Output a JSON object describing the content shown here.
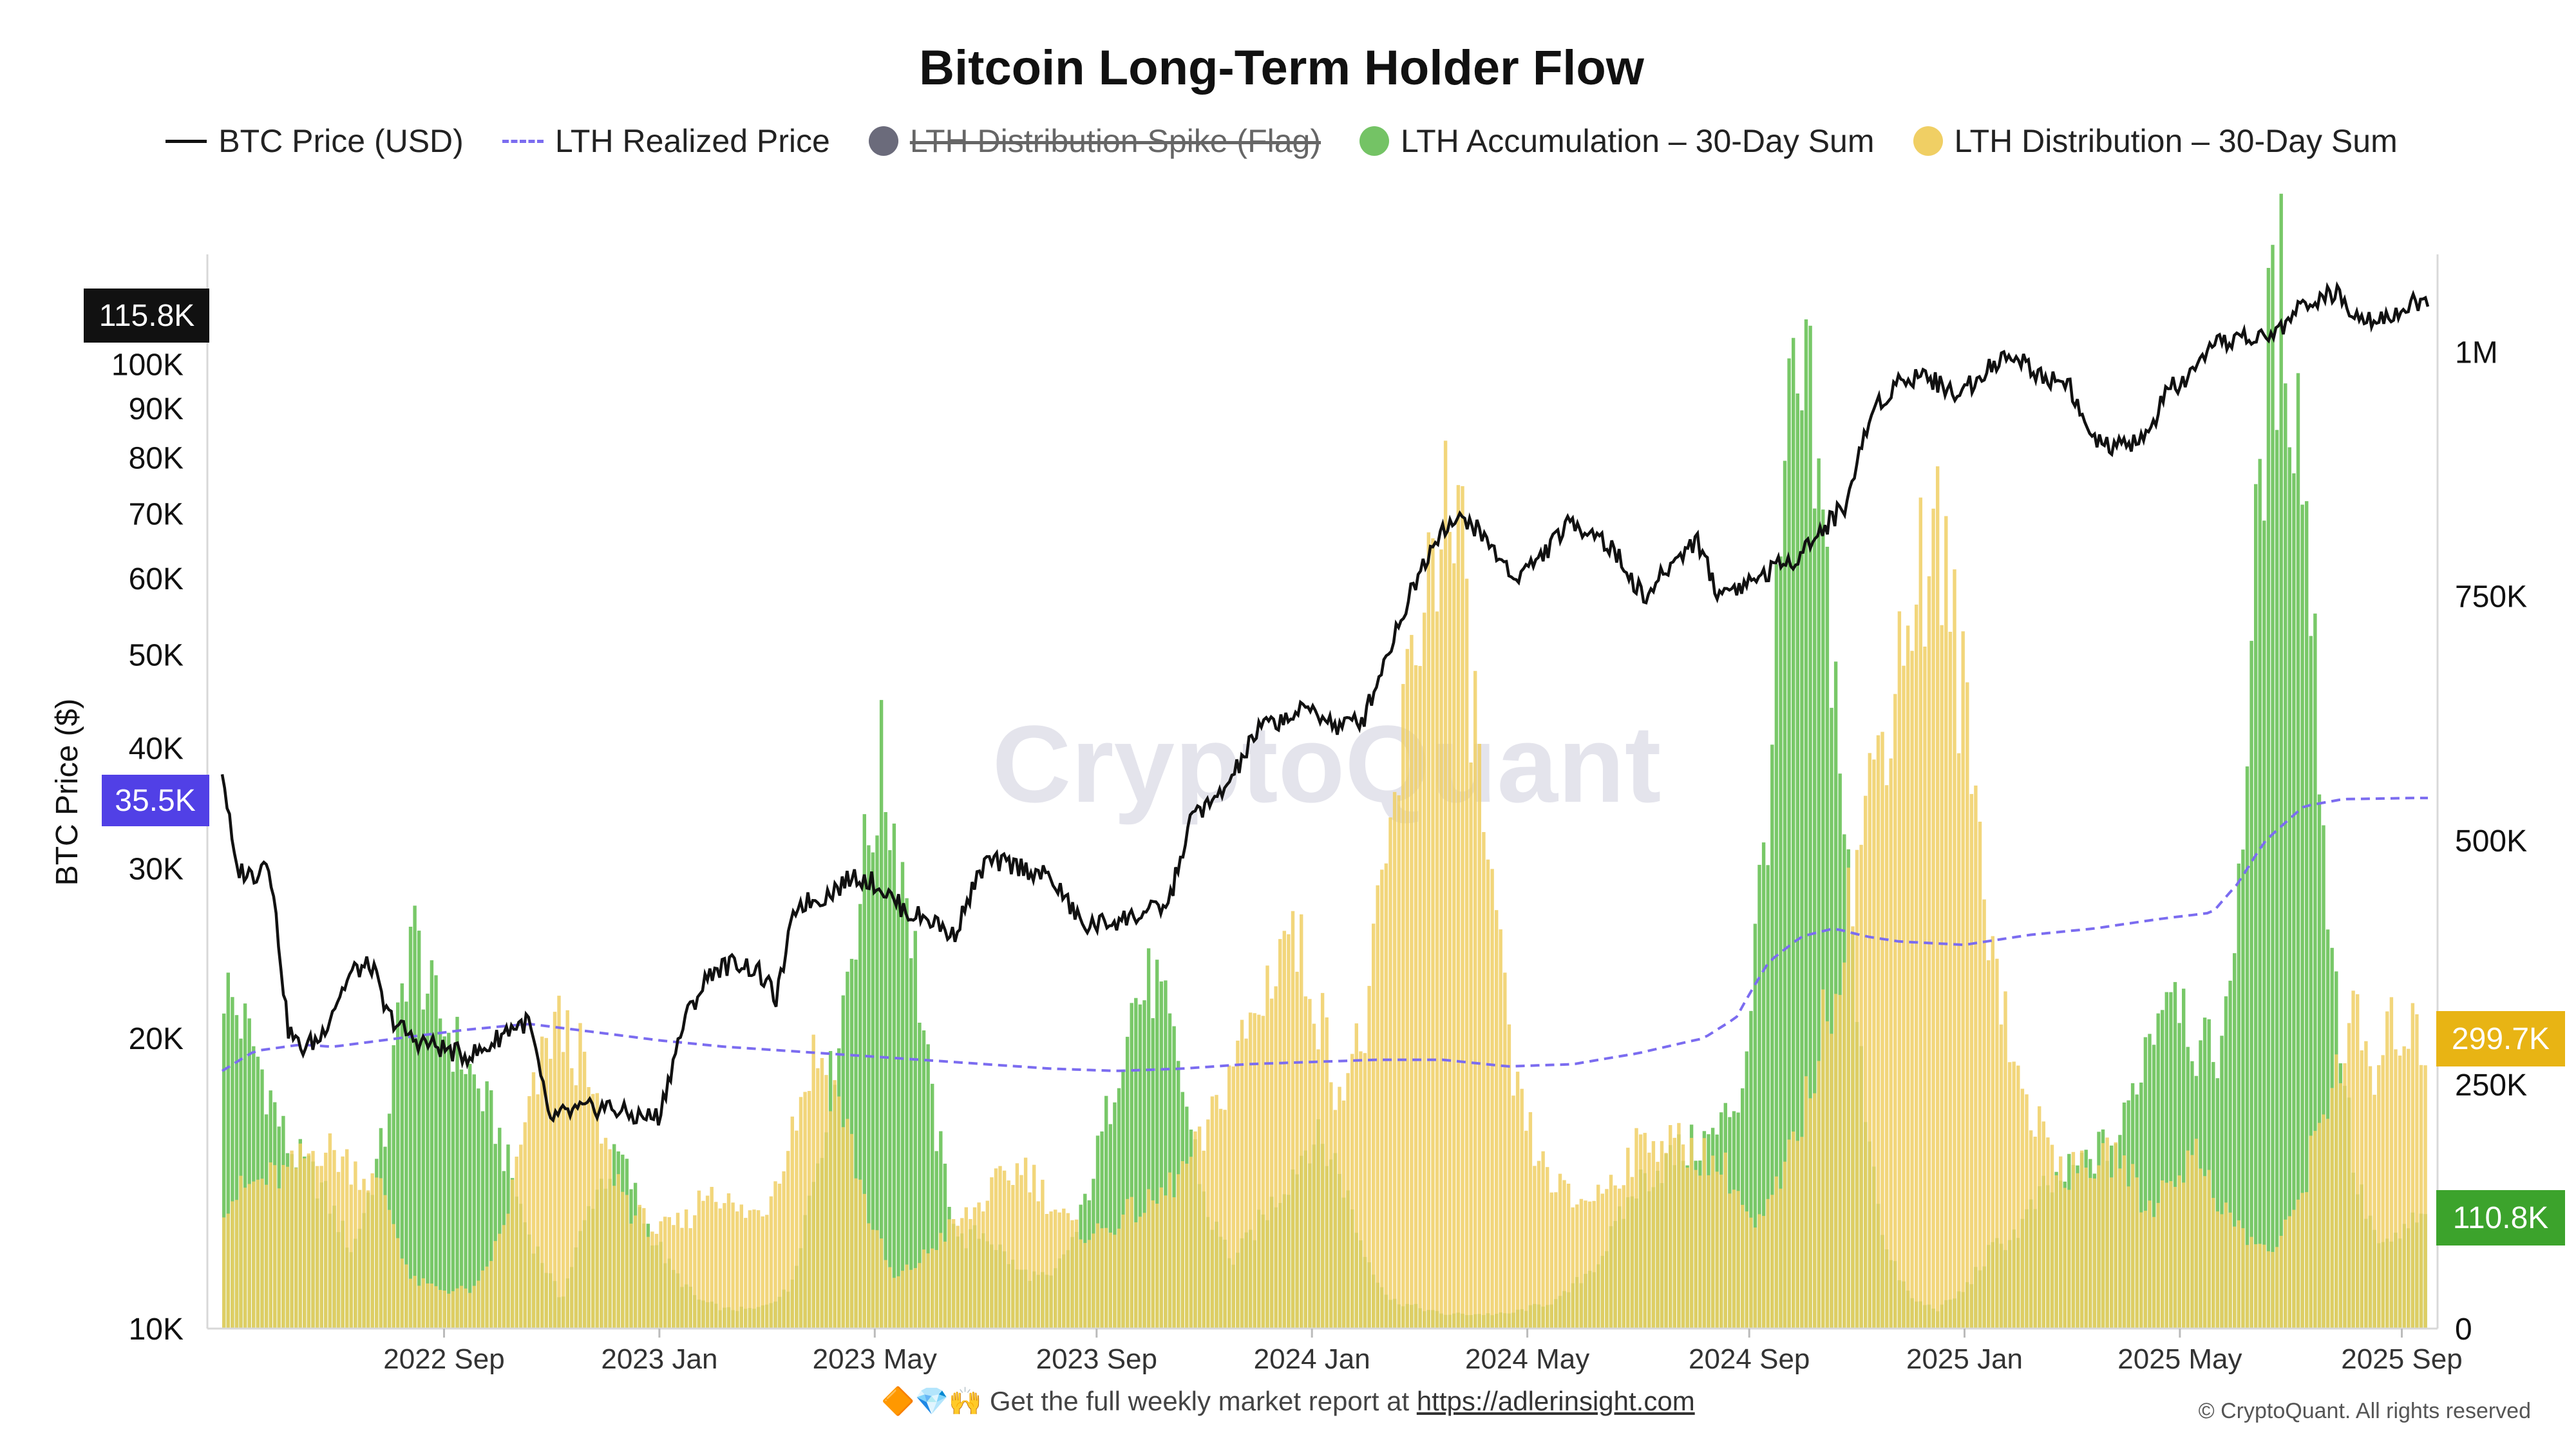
{
  "chart_data": {
    "type": "bar+line",
    "title": "Bitcoin Long-Term Holder Flow",
    "ylabel_left": "BTC Price ($)",
    "y_left_scale": "log",
    "ylim_left": [
      10000,
      130000
    ],
    "ylim_right": [
      0,
      1100000
    ],
    "left_ticks": [
      {
        "v": 10000,
        "label": "10K"
      },
      {
        "v": 20000,
        "label": "20K"
      },
      {
        "v": 30000,
        "label": "30K"
      },
      {
        "v": 40000,
        "label": "40K"
      },
      {
        "v": 50000,
        "label": "50K"
      },
      {
        "v": 60000,
        "label": "60K"
      },
      {
        "v": 70000,
        "label": "70K"
      },
      {
        "v": 80000,
        "label": "80K"
      },
      {
        "v": 90000,
        "label": "90K"
      },
      {
        "v": 100000,
        "label": "100K"
      }
    ],
    "right_ticks": [
      {
        "v": 0,
        "label": "0"
      },
      {
        "v": 250000,
        "label": "250K"
      },
      {
        "v": 500000,
        "label": "500K"
      },
      {
        "v": 750000,
        "label": "750K"
      },
      {
        "v": 1000000,
        "label": "1M"
      }
    ],
    "x_ticks": [
      {
        "t": 2022.67,
        "label": "2022 Sep"
      },
      {
        "t": 2023.0,
        "label": "2023 Jan"
      },
      {
        "t": 2023.33,
        "label": "2023 May"
      },
      {
        "t": 2023.67,
        "label": "2023 Sep"
      },
      {
        "t": 2024.0,
        "label": "2024 Jan"
      },
      {
        "t": 2024.33,
        "label": "2024 May"
      },
      {
        "t": 2024.67,
        "label": "2024 Sep"
      },
      {
        "t": 2025.0,
        "label": "2025 Jan"
      },
      {
        "t": 2025.33,
        "label": "2025 May"
      },
      {
        "t": 2025.67,
        "label": "2025 Sep"
      }
    ],
    "xlim": [
      2022.33,
      2025.71
    ],
    "legend": [
      {
        "name": "BTC Price (USD)",
        "style": "line",
        "color": "#111111"
      },
      {
        "name": "LTH Realized Price",
        "style": "dash",
        "color": "#7b6cf0"
      },
      {
        "name": "LTH Distribution Spike (Flag)",
        "style": "dot",
        "color": "#6b6b7b",
        "hidden": true
      },
      {
        "name": "LTH Accumulation – 30-Day Sum",
        "style": "dot",
        "color": "#74c365"
      },
      {
        "name": "LTH Distribution – 30-Day Sum",
        "style": "dot",
        "color": "#f0cf64"
      }
    ],
    "btc_price": [
      [
        2022.33,
        38000
      ],
      [
        2022.35,
        30000
      ],
      [
        2022.38,
        29500
      ],
      [
        2022.4,
        31000
      ],
      [
        2022.43,
        20500
      ],
      [
        2022.45,
        19500
      ],
      [
        2022.48,
        20000
      ],
      [
        2022.5,
        21500
      ],
      [
        2022.53,
        23500
      ],
      [
        2022.56,
        23800
      ],
      [
        2022.58,
        21300
      ],
      [
        2022.62,
        20000
      ],
      [
        2022.67,
        19500
      ],
      [
        2022.7,
        19200
      ],
      [
        2022.73,
        19400
      ],
      [
        2022.77,
        20500
      ],
      [
        2022.8,
        20800
      ],
      [
        2022.83,
        16500
      ],
      [
        2022.87,
        16800
      ],
      [
        2022.92,
        17000
      ],
      [
        2022.96,
        16600
      ],
      [
        2023.0,
        16600
      ],
      [
        2023.04,
        21000
      ],
      [
        2023.08,
        23500
      ],
      [
        2023.12,
        24000
      ],
      [
        2023.15,
        23500
      ],
      [
        2023.18,
        22000
      ],
      [
        2023.21,
        27500
      ],
      [
        2023.25,
        28000
      ],
      [
        2023.3,
        29500
      ],
      [
        2023.33,
        29000
      ],
      [
        2023.38,
        27000
      ],
      [
        2023.42,
        26500
      ],
      [
        2023.45,
        25500
      ],
      [
        2023.5,
        30500
      ],
      [
        2023.55,
        30200
      ],
      [
        2023.6,
        29300
      ],
      [
        2023.65,
        26100
      ],
      [
        2023.7,
        26500
      ],
      [
        2023.74,
        26900
      ],
      [
        2023.78,
        27500
      ],
      [
        2023.82,
        34500
      ],
      [
        2023.85,
        35000
      ],
      [
        2023.88,
        37500
      ],
      [
        2023.92,
        42000
      ],
      [
        2023.96,
        43000
      ],
      [
        2024.0,
        44000
      ],
      [
        2024.04,
        42000
      ],
      [
        2024.08,
        43000
      ],
      [
        2024.12,
        51000
      ],
      [
        2024.17,
        62000
      ],
      [
        2024.2,
        68000
      ],
      [
        2024.24,
        69000
      ],
      [
        2024.28,
        64000
      ],
      [
        2024.31,
        60000
      ],
      [
        2024.35,
        63000
      ],
      [
        2024.39,
        68000
      ],
      [
        2024.43,
        67500
      ],
      [
        2024.47,
        63000
      ],
      [
        2024.51,
        57000
      ],
      [
        2024.55,
        62000
      ],
      [
        2024.59,
        66000
      ],
      [
        2024.62,
        58000
      ],
      [
        2024.66,
        59000
      ],
      [
        2024.7,
        61000
      ],
      [
        2024.74,
        63000
      ],
      [
        2024.78,
        67000
      ],
      [
        2024.82,
        72000
      ],
      [
        2024.86,
        90000
      ],
      [
        2024.9,
        96000
      ],
      [
        2024.94,
        98000
      ],
      [
        2024.97,
        94000
      ],
      [
        2025.0,
        94000
      ],
      [
        2025.04,
        100000
      ],
      [
        2025.08,
        102000
      ],
      [
        2025.12,
        97000
      ],
      [
        2025.16,
        96000
      ],
      [
        2025.19,
        84000
      ],
      [
        2025.22,
        82000
      ],
      [
        2025.25,
        82500
      ],
      [
        2025.28,
        84000
      ],
      [
        2025.31,
        94000
      ],
      [
        2025.35,
        97000
      ],
      [
        2025.38,
        104000
      ],
      [
        2025.42,
        107000
      ],
      [
        2025.46,
        106000
      ],
      [
        2025.49,
        110000
      ],
      [
        2025.53,
        117000
      ],
      [
        2025.57,
        118000
      ],
      [
        2025.6,
        113500
      ],
      [
        2025.63,
        111500
      ],
      [
        2025.66,
        113000
      ],
      [
        2025.69,
        115800
      ]
    ],
    "lth_realized_price": [
      [
        2022.33,
        18500
      ],
      [
        2022.38,
        19400
      ],
      [
        2022.45,
        19700
      ],
      [
        2022.5,
        19600
      ],
      [
        2022.6,
        20000
      ],
      [
        2022.7,
        20400
      ],
      [
        2022.8,
        20700
      ],
      [
        2022.9,
        20300
      ],
      [
        2023.0,
        19900
      ],
      [
        2023.1,
        19600
      ],
      [
        2023.2,
        19400
      ],
      [
        2023.3,
        19200
      ],
      [
        2023.4,
        19000
      ],
      [
        2023.5,
        18800
      ],
      [
        2023.6,
        18600
      ],
      [
        2023.7,
        18500
      ],
      [
        2023.8,
        18600
      ],
      [
        2023.9,
        18800
      ],
      [
        2024.0,
        18900
      ],
      [
        2024.1,
        19000
      ],
      [
        2024.2,
        19000
      ],
      [
        2024.3,
        18700
      ],
      [
        2024.4,
        18800
      ],
      [
        2024.5,
        19300
      ],
      [
        2024.6,
        20000
      ],
      [
        2024.65,
        21000
      ],
      [
        2024.7,
        24000
      ],
      [
        2024.75,
        25500
      ],
      [
        2024.8,
        26000
      ],
      [
        2024.85,
        25500
      ],
      [
        2024.9,
        25200
      ],
      [
        2025.0,
        25000
      ],
      [
        2025.05,
        25300
      ],
      [
        2025.1,
        25600
      ],
      [
        2025.2,
        26000
      ],
      [
        2025.3,
        26600
      ],
      [
        2025.38,
        27000
      ],
      [
        2025.42,
        29000
      ],
      [
        2025.46,
        32000
      ],
      [
        2025.52,
        34800
      ],
      [
        2025.58,
        35400
      ],
      [
        2025.69,
        35500
      ]
    ],
    "lth_accumulation_30d": [
      [
        2022.33,
        360000
      ],
      [
        2022.38,
        290000
      ],
      [
        2022.43,
        190000
      ],
      [
        2022.48,
        150000
      ],
      [
        2022.53,
        80000
      ],
      [
        2022.58,
        200000
      ],
      [
        2022.62,
        420000
      ],
      [
        2022.65,
        340000
      ],
      [
        2022.7,
        280000
      ],
      [
        2022.75,
        210000
      ],
      [
        2022.8,
        100000
      ],
      [
        2022.85,
        30000
      ],
      [
        2022.9,
        140000
      ],
      [
        2022.94,
        180000
      ],
      [
        2022.98,
        110000
      ],
      [
        2023.02,
        60000
      ],
      [
        2023.06,
        30000
      ],
      [
        2023.1,
        20000
      ],
      [
        2023.15,
        20000
      ],
      [
        2023.2,
        40000
      ],
      [
        2023.25,
        200000
      ],
      [
        2023.3,
        420000
      ],
      [
        2023.34,
        580000
      ],
      [
        2023.38,
        460000
      ],
      [
        2023.42,
        220000
      ],
      [
        2023.46,
        90000
      ],
      [
        2023.5,
        100000
      ],
      [
        2023.55,
        60000
      ],
      [
        2023.6,
        50000
      ],
      [
        2023.64,
        100000
      ],
      [
        2023.68,
        200000
      ],
      [
        2023.72,
        330000
      ],
      [
        2023.76,
        360000
      ],
      [
        2023.8,
        260000
      ],
      [
        2023.84,
        120000
      ],
      [
        2023.88,
        70000
      ],
      [
        2023.92,
        110000
      ],
      [
        2023.96,
        150000
      ],
      [
        2024.0,
        200000
      ],
      [
        2024.04,
        170000
      ],
      [
        2024.08,
        80000
      ],
      [
        2024.12,
        30000
      ],
      [
        2024.2,
        15000
      ],
      [
        2024.3,
        15000
      ],
      [
        2024.38,
        30000
      ],
      [
        2024.44,
        70000
      ],
      [
        2024.5,
        150000
      ],
      [
        2024.56,
        180000
      ],
      [
        2024.62,
        200000
      ],
      [
        2024.66,
        250000
      ],
      [
        2024.7,
        550000
      ],
      [
        2024.73,
        920000
      ],
      [
        2024.76,
        950000
      ],
      [
        2024.8,
        700000
      ],
      [
        2024.84,
        280000
      ],
      [
        2024.88,
        80000
      ],
      [
        2024.92,
        30000
      ],
      [
        2024.96,
        20000
      ],
      [
        2025.0,
        40000
      ],
      [
        2025.04,
        80000
      ],
      [
        2025.08,
        100000
      ],
      [
        2025.12,
        140000
      ],
      [
        2025.16,
        160000
      ],
      [
        2025.2,
        180000
      ],
      [
        2025.24,
        200000
      ],
      [
        2025.28,
        300000
      ],
      [
        2025.32,
        380000
      ],
      [
        2025.36,
        280000
      ],
      [
        2025.4,
        300000
      ],
      [
        2025.43,
        560000
      ],
      [
        2025.46,
        960000
      ],
      [
        2025.49,
        1070000
      ],
      [
        2025.52,
        900000
      ],
      [
        2025.56,
        420000
      ],
      [
        2025.6,
        150000
      ],
      [
        2025.64,
        80000
      ],
      [
        2025.69,
        110800
      ]
    ],
    "lth_distribution_30d": [
      [
        2022.33,
        130000
      ],
      [
        2022.38,
        150000
      ],
      [
        2022.43,
        160000
      ],
      [
        2022.48,
        190000
      ],
      [
        2022.53,
        170000
      ],
      [
        2022.58,
        140000
      ],
      [
        2022.62,
        50000
      ],
      [
        2022.67,
        40000
      ],
      [
        2022.72,
        40000
      ],
      [
        2022.76,
        100000
      ],
      [
        2022.8,
        220000
      ],
      [
        2022.84,
        320000
      ],
      [
        2022.88,
        280000
      ],
      [
        2022.92,
        180000
      ],
      [
        2022.96,
        120000
      ],
      [
        2023.0,
        100000
      ],
      [
        2023.04,
        110000
      ],
      [
        2023.08,
        150000
      ],
      [
        2023.12,
        120000
      ],
      [
        2023.16,
        120000
      ],
      [
        2023.2,
        200000
      ],
      [
        2023.24,
        290000
      ],
      [
        2023.28,
        230000
      ],
      [
        2023.32,
        120000
      ],
      [
        2023.36,
        50000
      ],
      [
        2023.4,
        70000
      ],
      [
        2023.44,
        100000
      ],
      [
        2023.48,
        120000
      ],
      [
        2023.52,
        150000
      ],
      [
        2023.56,
        170000
      ],
      [
        2023.6,
        130000
      ],
      [
        2023.64,
        100000
      ],
      [
        2023.68,
        100000
      ],
      [
        2023.72,
        120000
      ],
      [
        2023.76,
        130000
      ],
      [
        2023.8,
        160000
      ],
      [
        2023.84,
        200000
      ],
      [
        2023.88,
        280000
      ],
      [
        2023.92,
        330000
      ],
      [
        2023.96,
        420000
      ],
      [
        2024.0,
        360000
      ],
      [
        2024.04,
        250000
      ],
      [
        2024.08,
        300000
      ],
      [
        2024.12,
        500000
      ],
      [
        2024.16,
        720000
      ],
      [
        2024.2,
        860000
      ],
      [
        2024.23,
        780000
      ],
      [
        2024.27,
        480000
      ],
      [
        2024.31,
        250000
      ],
      [
        2024.35,
        170000
      ],
      [
        2024.4,
        130000
      ],
      [
        2024.44,
        140000
      ],
      [
        2024.48,
        170000
      ],
      [
        2024.52,
        200000
      ],
      [
        2024.56,
        190000
      ],
      [
        2024.6,
        180000
      ],
      [
        2024.64,
        160000
      ],
      [
        2024.68,
        100000
      ],
      [
        2024.72,
        150000
      ],
      [
        2024.76,
        240000
      ],
      [
        2024.8,
        360000
      ],
      [
        2024.84,
        500000
      ],
      [
        2024.88,
        640000
      ],
      [
        2024.92,
        760000
      ],
      [
        2024.96,
        820000
      ],
      [
        2025.0,
        640000
      ],
      [
        2025.04,
        420000
      ],
      [
        2025.08,
        260000
      ],
      [
        2025.12,
        200000
      ],
      [
        2025.16,
        160000
      ],
      [
        2025.2,
        170000
      ],
      [
        2025.24,
        180000
      ],
      [
        2025.28,
        120000
      ],
      [
        2025.32,
        160000
      ],
      [
        2025.36,
        180000
      ],
      [
        2025.4,
        120000
      ],
      [
        2025.44,
        90000
      ],
      [
        2025.48,
        80000
      ],
      [
        2025.52,
        150000
      ],
      [
        2025.56,
        250000
      ],
      [
        2025.6,
        320000
      ],
      [
        2025.63,
        250000
      ],
      [
        2025.66,
        320000
      ],
      [
        2025.69,
        299700
      ]
    ],
    "callouts": {
      "btc_price": "115.8K",
      "lth_realized_price": "35.5K",
      "lth_distribution": "299.7K",
      "lth_accumulation": "110.8K"
    },
    "watermark": "CryptoQuant"
  },
  "colors": {
    "price": "#111111",
    "realized": "#7b6cf0",
    "accumulation": "#6cc35b",
    "distribution": "#f0cf64",
    "callout_price": "#111111",
    "callout_realized": "#5140e6",
    "callout_distribution": "#e8b414",
    "callout_accumulation": "#3ca32c"
  },
  "footer": {
    "icons": "🔶💎🙌",
    "text": "Get the full weekly market report at",
    "link": "https://adlerinsight.com",
    "copyright": "© CryptoQuant. All rights reserved"
  }
}
